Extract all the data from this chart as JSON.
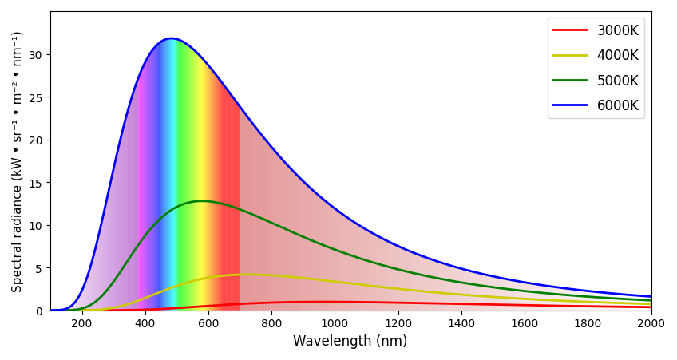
{
  "temperatures": [
    3000,
    4000,
    5000,
    6000
  ],
  "line_colors": [
    "red",
    "#cccc00",
    "green",
    "blue"
  ],
  "line_labels": [
    "3000K",
    "4000K",
    "5000K",
    "6000K"
  ],
  "wavelength_min": 100,
  "wavelength_max": 2000,
  "wavelength_num": 2000,
  "xlim": [
    100,
    2000
  ],
  "ylim": [
    0,
    35
  ],
  "xlabel": "Wavelength (nm)",
  "ylabel": "Spectral radiance (kW • sr⁻¹ • m⁻² • nm⁻¹)",
  "yticks": [
    0,
    5,
    10,
    15,
    20,
    25,
    30
  ],
  "xticks": [
    200,
    400,
    600,
    800,
    1000,
    1200,
    1400,
    1600,
    1800,
    2000
  ],
  "visible_min_nm": 380,
  "visible_max_nm": 700,
  "uv_min_nm": 100,
  "ir_max_nm": 2000,
  "n_strips": 1000,
  "figsize": [
    8.48,
    4.52
  ],
  "dpi": 100
}
